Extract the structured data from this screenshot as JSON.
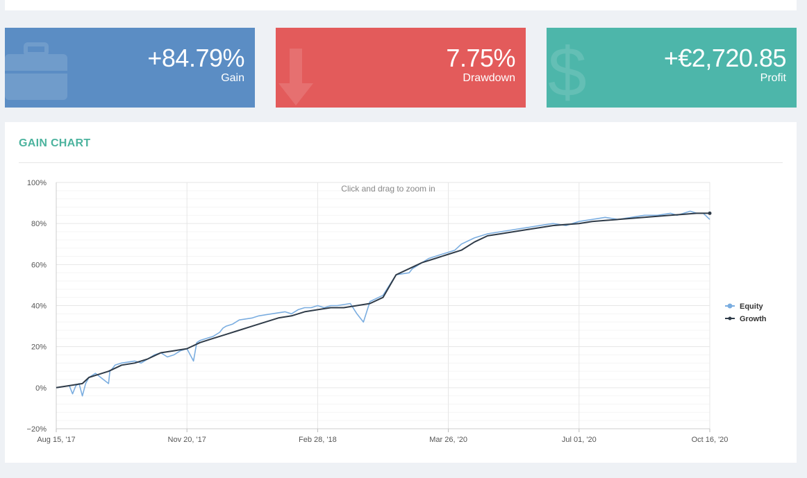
{
  "stats": {
    "gain": {
      "value": "+84.79%",
      "label": "Gain"
    },
    "drawdown": {
      "value": "7.75%",
      "label": "Drawdown"
    },
    "profit": {
      "value": "+€2,720.85",
      "label": "Profit"
    }
  },
  "colors": {
    "gain_card": "#5b8dc4",
    "drawdown_card": "#e35b5b",
    "profit_card": "#4db6aa",
    "title": "#4cb39e",
    "equity": "#7aade0",
    "growth": "#2f3b48"
  },
  "icons": {
    "gain": "briefcase-icon",
    "drawdown": "arrow-down-icon",
    "profit": "dollar-icon"
  },
  "panel": {
    "title": "GAIN CHART"
  },
  "chart_data": {
    "type": "line",
    "hint": "Click and drag to zoom in",
    "x_ticks": [
      "Aug 15, '17",
      "Nov 20, '17",
      "Feb 28, '18",
      "Mar 26, '20",
      "Jul 01, '20",
      "Oct 16, '20"
    ],
    "y_ticks": [
      "−20%",
      "0%",
      "20%",
      "40%",
      "60%",
      "80%",
      "100%"
    ],
    "ylim": [
      -20,
      100
    ],
    "grid": true,
    "legend_position": "right",
    "series": [
      {
        "name": "Equity",
        "color": "#7aade0",
        "x": [
          0,
          0.02,
          0.025,
          0.03,
          0.035,
          0.04,
          0.045,
          0.05,
          0.055,
          0.06,
          0.08,
          0.082,
          0.085,
          0.09,
          0.1,
          0.12,
          0.13,
          0.14,
          0.15,
          0.16,
          0.17,
          0.18,
          0.19,
          0.2,
          0.21,
          0.215,
          0.22,
          0.23,
          0.24,
          0.25,
          0.255,
          0.26,
          0.27,
          0.28,
          0.3,
          0.31,
          0.33,
          0.35,
          0.36,
          0.37,
          0.38,
          0.39,
          0.4,
          0.41,
          0.42,
          0.43,
          0.45,
          0.46,
          0.47,
          0.48,
          0.5,
          0.52,
          0.54,
          0.545,
          0.55,
          0.56,
          0.57,
          0.58,
          0.59,
          0.6,
          0.61,
          0.62,
          0.64,
          0.66,
          0.68,
          0.7,
          0.72,
          0.74,
          0.76,
          0.78,
          0.8,
          0.82,
          0.84,
          0.86,
          0.88,
          0.9,
          0.92,
          0.94,
          0.95,
          0.96,
          0.97,
          0.98,
          0.99,
          1.0
        ],
        "y": [
          0,
          1,
          -3,
          1,
          2,
          -4,
          2,
          5,
          6,
          7,
          2,
          8,
          9,
          11,
          12,
          13,
          12,
          14,
          16,
          17,
          15,
          16,
          18,
          19,
          13,
          22,
          23,
          24,
          25,
          27,
          29,
          30,
          31,
          33,
          34,
          35,
          36,
          37,
          36,
          38,
          39,
          39,
          40,
          39,
          40,
          40,
          41,
          36,
          32,
          42,
          45,
          55,
          56,
          58,
          59,
          61,
          63,
          64,
          65,
          66,
          67,
          70,
          73,
          75,
          76,
          77,
          78,
          79,
          80,
          79,
          81,
          82,
          83,
          82,
          83,
          84,
          84,
          85,
          84,
          85,
          86,
          85,
          85,
          82
        ]
      },
      {
        "name": "Growth",
        "color": "#2f3b48",
        "x": [
          0,
          0.02,
          0.04,
          0.05,
          0.06,
          0.08,
          0.1,
          0.12,
          0.14,
          0.16,
          0.18,
          0.2,
          0.22,
          0.24,
          0.26,
          0.28,
          0.3,
          0.32,
          0.34,
          0.36,
          0.38,
          0.4,
          0.42,
          0.44,
          0.46,
          0.48,
          0.5,
          0.52,
          0.54,
          0.56,
          0.58,
          0.6,
          0.62,
          0.64,
          0.66,
          0.68,
          0.7,
          0.72,
          0.74,
          0.76,
          0.78,
          0.8,
          0.82,
          0.84,
          0.86,
          0.88,
          0.9,
          0.92,
          0.94,
          0.96,
          0.98,
          1.0
        ],
        "y": [
          0,
          1,
          2,
          5,
          6,
          8,
          11,
          12,
          14,
          17,
          18,
          19,
          22,
          24,
          26,
          28,
          30,
          32,
          34,
          35,
          37,
          38,
          39,
          39,
          40,
          41,
          44,
          55,
          58,
          61,
          63,
          65,
          67,
          71,
          74,
          75,
          76,
          77,
          78,
          79,
          79.5,
          80,
          81,
          81.5,
          82,
          82.5,
          83,
          83.5,
          84,
          84.5,
          85,
          85
        ]
      }
    ]
  }
}
